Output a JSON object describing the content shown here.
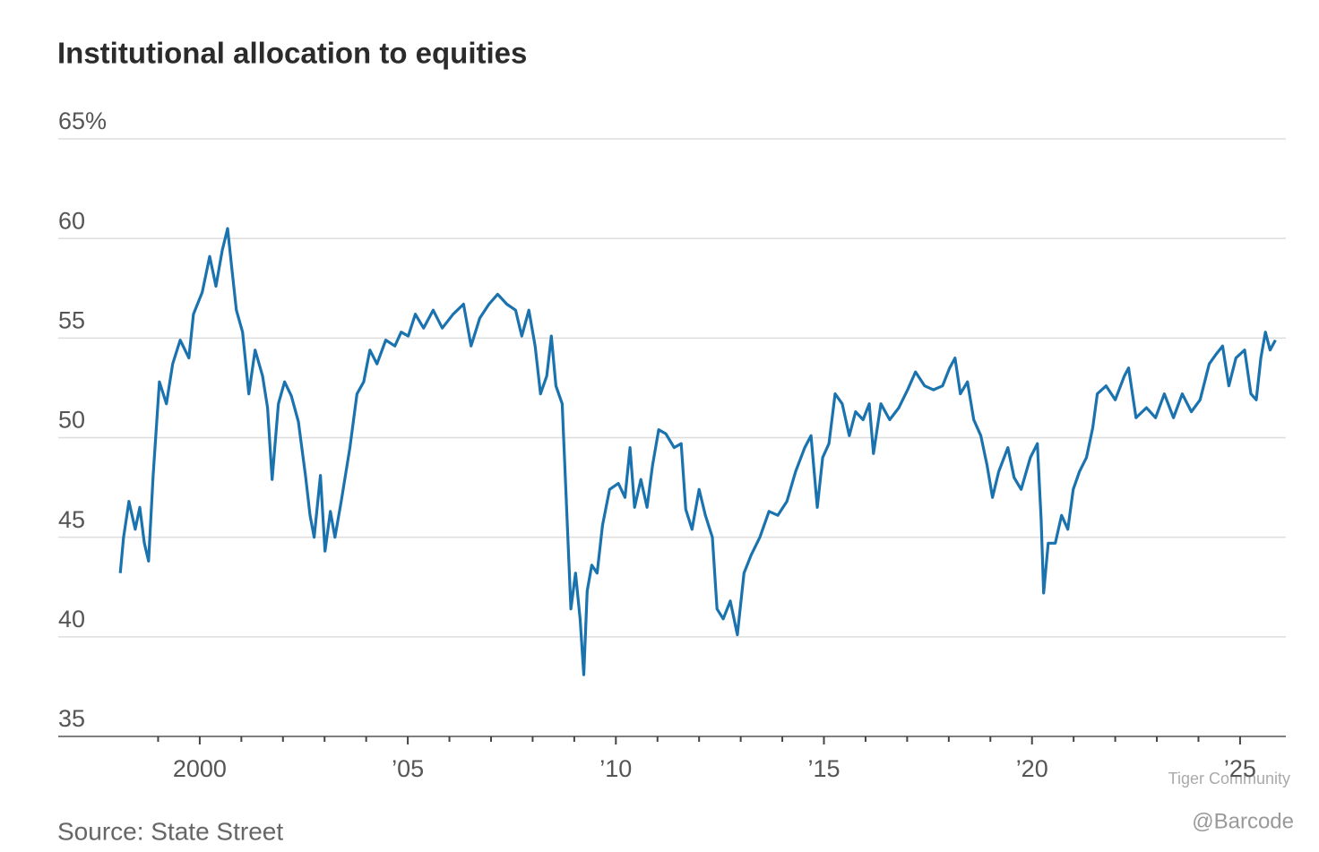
{
  "chart_data": {
    "type": "line",
    "title": "Institutional allocation to equities",
    "source": "Source: State Street",
    "watermark": [
      "Tiger Community",
      "@Barcode"
    ],
    "x": [
      1998.09,
      1998.17,
      1998.3,
      1998.45,
      1998.56,
      1998.67,
      1998.77,
      1998.88,
      1999.03,
      1999.2,
      1999.35,
      1999.53,
      1999.74,
      1999.85,
      2000.06,
      2000.24,
      2000.39,
      2000.54,
      2000.67,
      2000.77,
      2000.88,
      2001.03,
      2001.18,
      2001.33,
      2001.51,
      2001.63,
      2001.74,
      2001.89,
      2002.04,
      2002.2,
      2002.37,
      2002.54,
      2002.65,
      2002.75,
      2002.9,
      2003.01,
      2003.14,
      2003.25,
      2003.4,
      2003.61,
      2003.78,
      2003.94,
      2004.09,
      2004.26,
      2004.47,
      2004.69,
      2004.84,
      2005.01,
      2005.18,
      2005.38,
      2005.61,
      2005.83,
      2006.09,
      2006.34,
      2006.52,
      2006.73,
      2006.95,
      2007.16,
      2007.38,
      2007.59,
      2007.74,
      2007.91,
      2008.06,
      2008.19,
      2008.34,
      2008.45,
      2008.56,
      2008.71,
      2008.82,
      2008.92,
      2009.03,
      2009.14,
      2009.23,
      2009.31,
      2009.42,
      2009.55,
      2009.68,
      2009.85,
      2010.06,
      2010.22,
      2010.34,
      2010.45,
      2010.6,
      2010.75,
      2010.88,
      2011.03,
      2011.2,
      2011.4,
      2011.57,
      2011.68,
      2011.83,
      2012.0,
      2012.15,
      2012.32,
      2012.43,
      2012.58,
      2012.75,
      2012.92,
      2013.08,
      2013.25,
      2013.46,
      2013.68,
      2013.89,
      2014.11,
      2014.32,
      2014.54,
      2014.69,
      2014.84,
      2014.97,
      2015.12,
      2015.27,
      2015.44,
      2015.61,
      2015.76,
      2015.94,
      2016.09,
      2016.19,
      2016.37,
      2016.58,
      2016.8,
      2017.01,
      2017.2,
      2017.42,
      2017.63,
      2017.85,
      2018.02,
      2018.15,
      2018.28,
      2018.45,
      2018.6,
      2018.77,
      2018.92,
      2019.05,
      2019.2,
      2019.42,
      2019.57,
      2019.74,
      2019.96,
      2020.13,
      2020.22,
      2020.28,
      2020.39,
      2020.56,
      2020.71,
      2020.86,
      2020.99,
      2021.14,
      2021.31,
      2021.46,
      2021.57,
      2021.78,
      2022.0,
      2022.22,
      2022.32,
      2022.5,
      2022.75,
      2022.97,
      2023.18,
      2023.4,
      2023.61,
      2023.83,
      2024.04,
      2024.26,
      2024.43,
      2024.58,
      2024.73,
      2024.9,
      2025.11,
      2025.26,
      2025.39,
      2025.5,
      2025.61,
      2025.72,
      2025.85
    ],
    "series": [
      {
        "color": "#1a73ae",
        "values": [
          43.2,
          45.0,
          46.8,
          45.4,
          46.5,
          44.7,
          43.8,
          48.1,
          52.8,
          51.7,
          53.7,
          54.9,
          54.0,
          56.2,
          57.3,
          59.1,
          57.6,
          59.4,
          60.5,
          58.5,
          56.4,
          55.3,
          52.2,
          54.4,
          53.1,
          51.5,
          47.9,
          51.7,
          52.8,
          52.1,
          50.8,
          48.1,
          46.1,
          45.0,
          48.1,
          44.3,
          46.3,
          45.0,
          46.8,
          49.5,
          52.2,
          52.8,
          54.4,
          53.7,
          54.9,
          54.6,
          55.3,
          55.1,
          56.2,
          55.5,
          56.4,
          55.5,
          56.2,
          56.7,
          54.6,
          56.0,
          56.7,
          57.2,
          56.7,
          56.4,
          55.1,
          56.4,
          54.6,
          52.2,
          53.1,
          55.1,
          52.6,
          51.7,
          46.3,
          41.4,
          43.2,
          40.9,
          38.1,
          42.3,
          43.6,
          43.2,
          45.6,
          47.4,
          47.7,
          47.0,
          49.5,
          46.5,
          47.9,
          46.5,
          48.6,
          50.4,
          50.2,
          49.5,
          49.7,
          46.4,
          45.4,
          47.4,
          46.1,
          45.0,
          41.4,
          40.9,
          41.8,
          40.1,
          43.2,
          44.1,
          45.0,
          46.3,
          46.1,
          46.8,
          48.3,
          49.5,
          50.1,
          46.5,
          49.0,
          49.7,
          52.2,
          51.7,
          50.1,
          51.3,
          50.9,
          51.7,
          49.2,
          51.7,
          50.9,
          51.5,
          52.4,
          53.3,
          52.6,
          52.4,
          52.6,
          53.5,
          54.0,
          52.2,
          52.8,
          50.9,
          50.1,
          48.6,
          47.0,
          48.3,
          49.5,
          48.0,
          47.4,
          49.0,
          49.7,
          45.9,
          42.2,
          44.7,
          44.7,
          46.1,
          45.4,
          47.4,
          48.3,
          49.0,
          50.5,
          52.2,
          52.6,
          51.9,
          53.1,
          53.5,
          51.0,
          51.5,
          51.0,
          52.2,
          51.0,
          52.2,
          51.3,
          51.9,
          53.7,
          54.2,
          54.6,
          52.6,
          54.0,
          54.4,
          52.2,
          51.9,
          54.0,
          55.3,
          54.4,
          54.9
        ]
      }
    ],
    "xlim": [
      1996.6,
      2026.1
    ],
    "xticks": [
      2000,
      {
        "value": 2005,
        "label": "’05"
      },
      {
        "value": 2010,
        "label": "’10"
      },
      {
        "value": 2015,
        "label": "’15"
      },
      {
        "value": 2020,
        "label": "’20"
      },
      {
        "value": 2025,
        "label": "’25"
      }
    ],
    "minor_xticks": [
      1999,
      2001,
      2002,
      2003,
      2004,
      2006,
      2007,
      2008,
      2009,
      2011,
      2012,
      2013,
      2014,
      2016,
      2017,
      2018,
      2019,
      2021,
      2022,
      2023,
      2024
    ],
    "ylim": [
      35,
      65
    ],
    "yticks": [
      35,
      40,
      45,
      50,
      55,
      60,
      {
        "value": 65,
        "label": "65%"
      }
    ],
    "grid": true
  }
}
